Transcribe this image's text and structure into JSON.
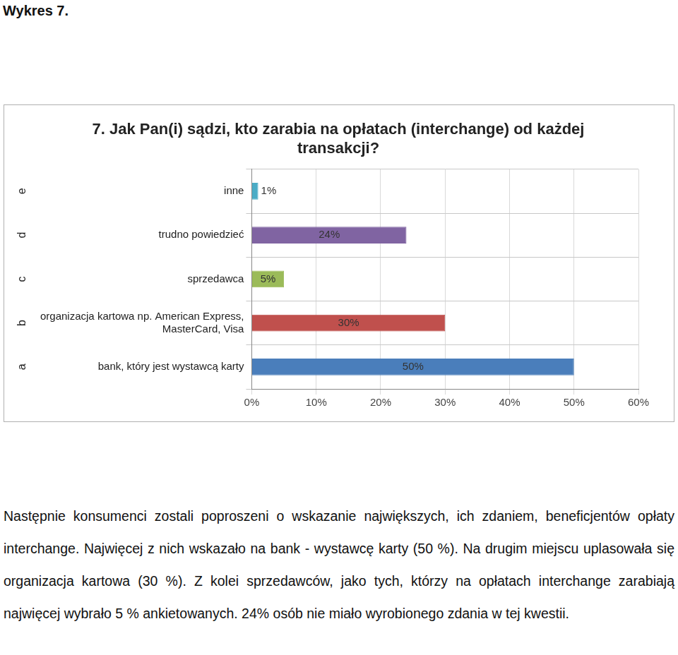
{
  "heading": "Wykres 7.",
  "chart_data": {
    "type": "bar",
    "orientation": "horizontal",
    "title": "7. Jak Pan(i) sądzi, kto zarabia na opłatach (interchange) od każdej transakcji?",
    "category_codes": [
      "a",
      "b",
      "c",
      "d",
      "e"
    ],
    "categories": [
      "bank, który jest wystawcą karty",
      "organizacja kartowa np. American Express, MasterCard, Visa",
      "sprzedawca",
      "trudno powiedzieć",
      "inne"
    ],
    "values": [
      50,
      30,
      5,
      24,
      1
    ],
    "value_labels": [
      "50%",
      "30%",
      "5%",
      "24%",
      "1%"
    ],
    "data_labels": true,
    "colors": [
      "#4a7ebb",
      "#c0504d",
      "#9bbb59",
      "#8064a2",
      "#4bacc6"
    ],
    "xlim": [
      0,
      60
    ],
    "xticks": [
      {
        "value": 0,
        "label": "0%"
      },
      {
        "value": 10,
        "label": "10%"
      },
      {
        "value": 20,
        "label": "20%"
      },
      {
        "value": 30,
        "label": "30%"
      },
      {
        "value": 40,
        "label": "40%"
      },
      {
        "value": 50,
        "label": "50%"
      },
      {
        "value": 60,
        "label": "60%"
      }
    ],
    "grid": true
  },
  "text": "Następnie konsumenci zostali poproszeni o wskazanie największych, ich zdaniem, beneficjentów opłaty interchange. Najwięcej z nich wskazało na bank - wystawcę karty (50 %). Na drugim miejscu uplasowała się organizacja kartowa (30 %). Z kolei sprzedawców, jako tych, którzy na opłatach interchange zarabiają najwięcej wybrało 5 % ankietowanych. 24% osób nie miało wyrobionego zdania w tej kwestii."
}
